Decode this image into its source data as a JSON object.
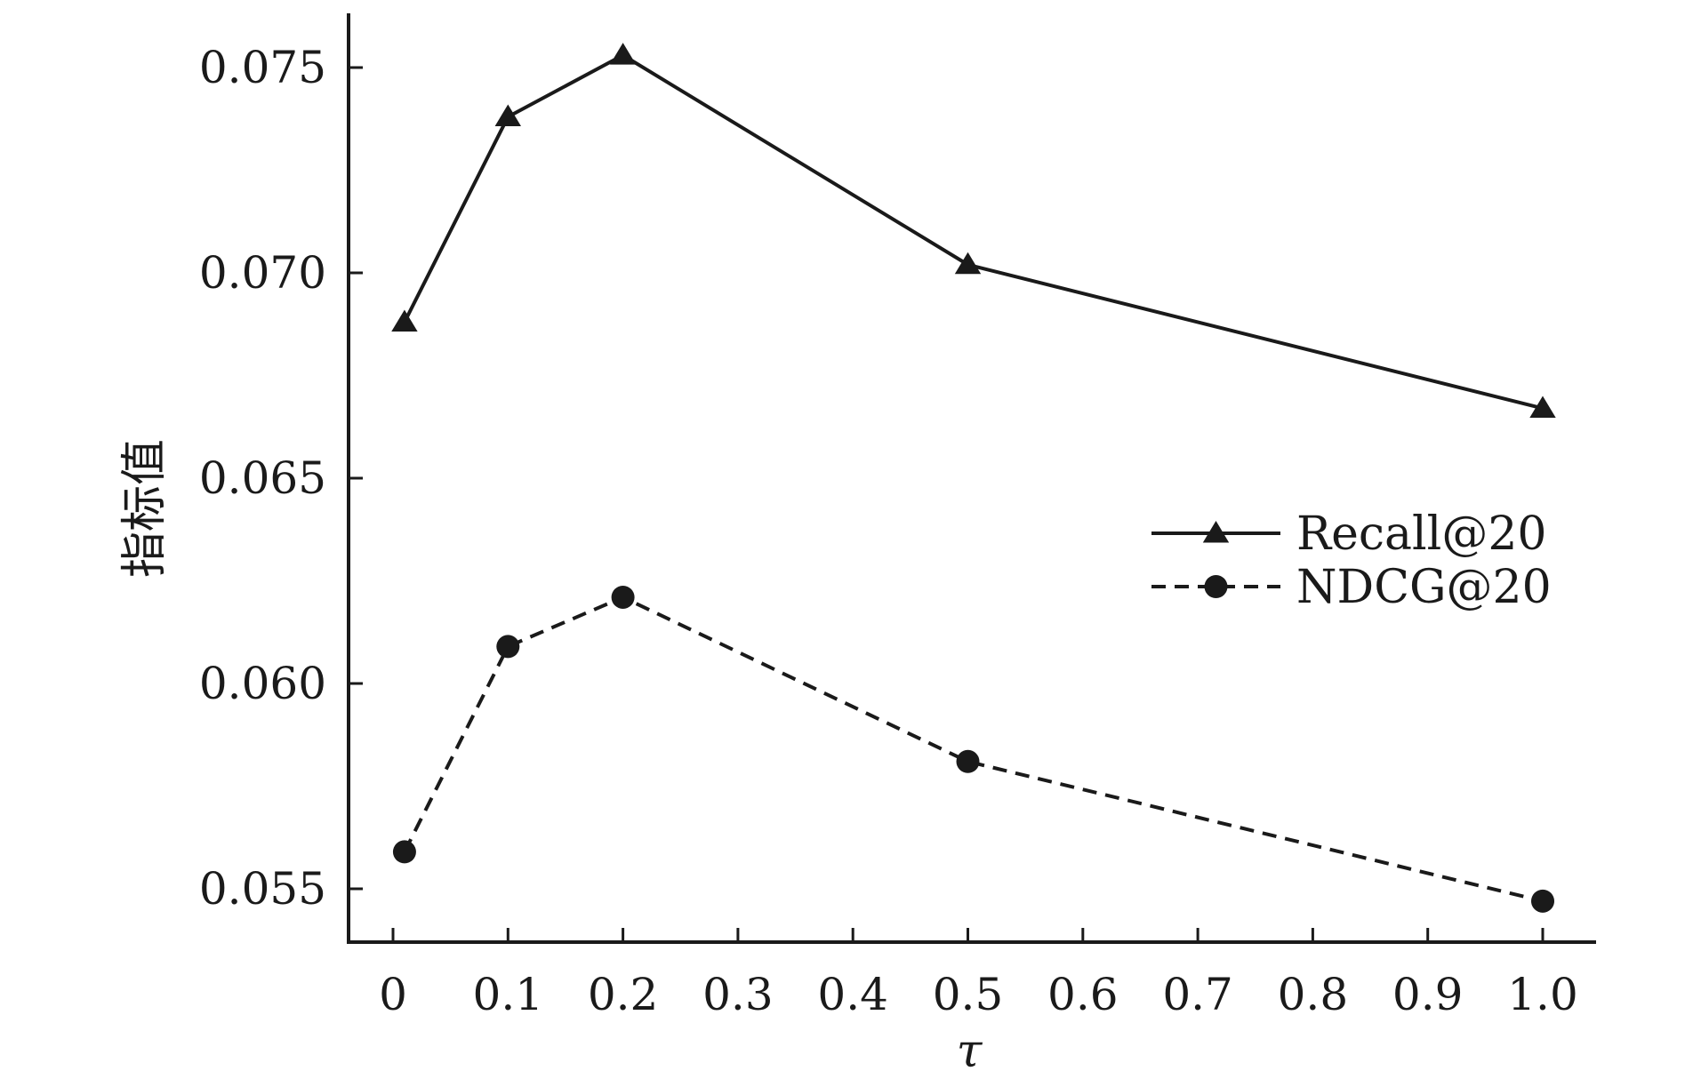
{
  "chart_data": {
    "type": "line",
    "title": "",
    "xlabel": "τ",
    "ylabel": "指标值",
    "xlim": [
      -0.04,
      1.05
    ],
    "ylim": [
      0.0537,
      0.0764
    ],
    "x_ticks": [
      0,
      0.1,
      0.2,
      0.3,
      0.4,
      0.5,
      0.6,
      0.7,
      0.8,
      0.9,
      1.0
    ],
    "x_tick_labels": [
      "0",
      "0.1",
      "0.2",
      "0.3",
      "0.4",
      "0.5",
      "0.6",
      "0.7",
      "0.8",
      "0.9",
      "1.0"
    ],
    "y_ticks": [
      0.055,
      0.06,
      0.065,
      0.07,
      0.075
    ],
    "y_tick_labels": [
      "0.055",
      "0.060",
      "0.065",
      "0.070",
      "0.075"
    ],
    "grid": false,
    "legend_position": "right",
    "series": [
      {
        "name": "Recall@20",
        "marker": "triangle",
        "line_style": "solid",
        "color": "#1a1a1a",
        "x": [
          0.01,
          0.1,
          0.2,
          0.5,
          1.0
        ],
        "y": [
          0.0688,
          0.0738,
          0.0753,
          0.0702,
          0.0667
        ]
      },
      {
        "name": "NDCG@20",
        "marker": "circle",
        "line_style": "dashed",
        "color": "#1a1a1a",
        "x": [
          0.01,
          0.1,
          0.2,
          0.5,
          1.0
        ],
        "y": [
          0.0559,
          0.0609,
          0.0621,
          0.0581,
          0.0547
        ]
      }
    ]
  }
}
